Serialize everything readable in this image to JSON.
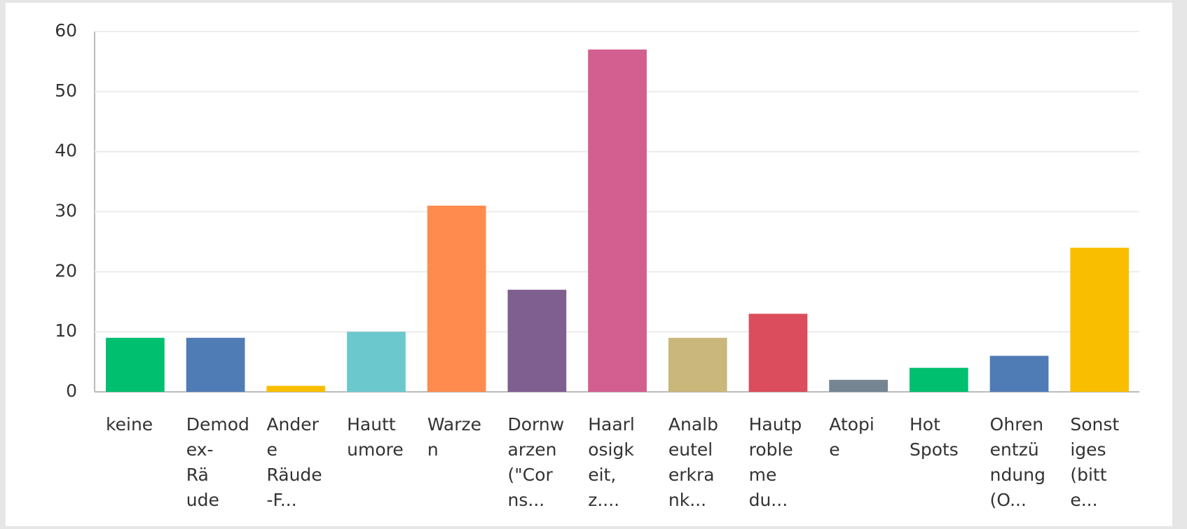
{
  "chart_data": {
    "type": "bar",
    "categories": [
      [
        "keine"
      ],
      [
        "Demod",
        "ex-",
        "Rä",
        "ude"
      ],
      [
        "Ander",
        "e",
        "Räude",
        "-F..."
      ],
      [
        "Hautt",
        "umore"
      ],
      [
        "Warze",
        "n"
      ],
      [
        "Dornw",
        "arzen",
        "(\"Cor",
        "ns..."
      ],
      [
        "Haarl",
        "osigk",
        "eit,",
        "z...."
      ],
      [
        "Analb",
        "eutel",
        "erkra",
        "nk..."
      ],
      [
        "Hautp",
        "roble",
        "me",
        "du..."
      ],
      [
        "Atopi",
        "e"
      ],
      [
        "Hot",
        "Spots"
      ],
      [
        "Ohren",
        "entzü",
        "ndung",
        "(O..."
      ],
      [
        "Sonst",
        "iges",
        "(bitt",
        "e..."
      ]
    ],
    "values": [
      9,
      9,
      1,
      10,
      31,
      17,
      57,
      9,
      13,
      2,
      4,
      6,
      24
    ],
    "colors": [
      "#00bf6f",
      "#507cb6",
      "#f9be00",
      "#6bc8cd",
      "#ff8b4f",
      "#7f5f90",
      "#d25f90",
      "#c9b77b",
      "#db4d5c",
      "#758592",
      "#00bf6f",
      "#507cb6",
      "#f9be00"
    ],
    "ylim": [
      0,
      60
    ],
    "yticks": [
      0,
      10,
      20,
      30,
      40,
      50,
      60
    ],
    "grid": true
  }
}
